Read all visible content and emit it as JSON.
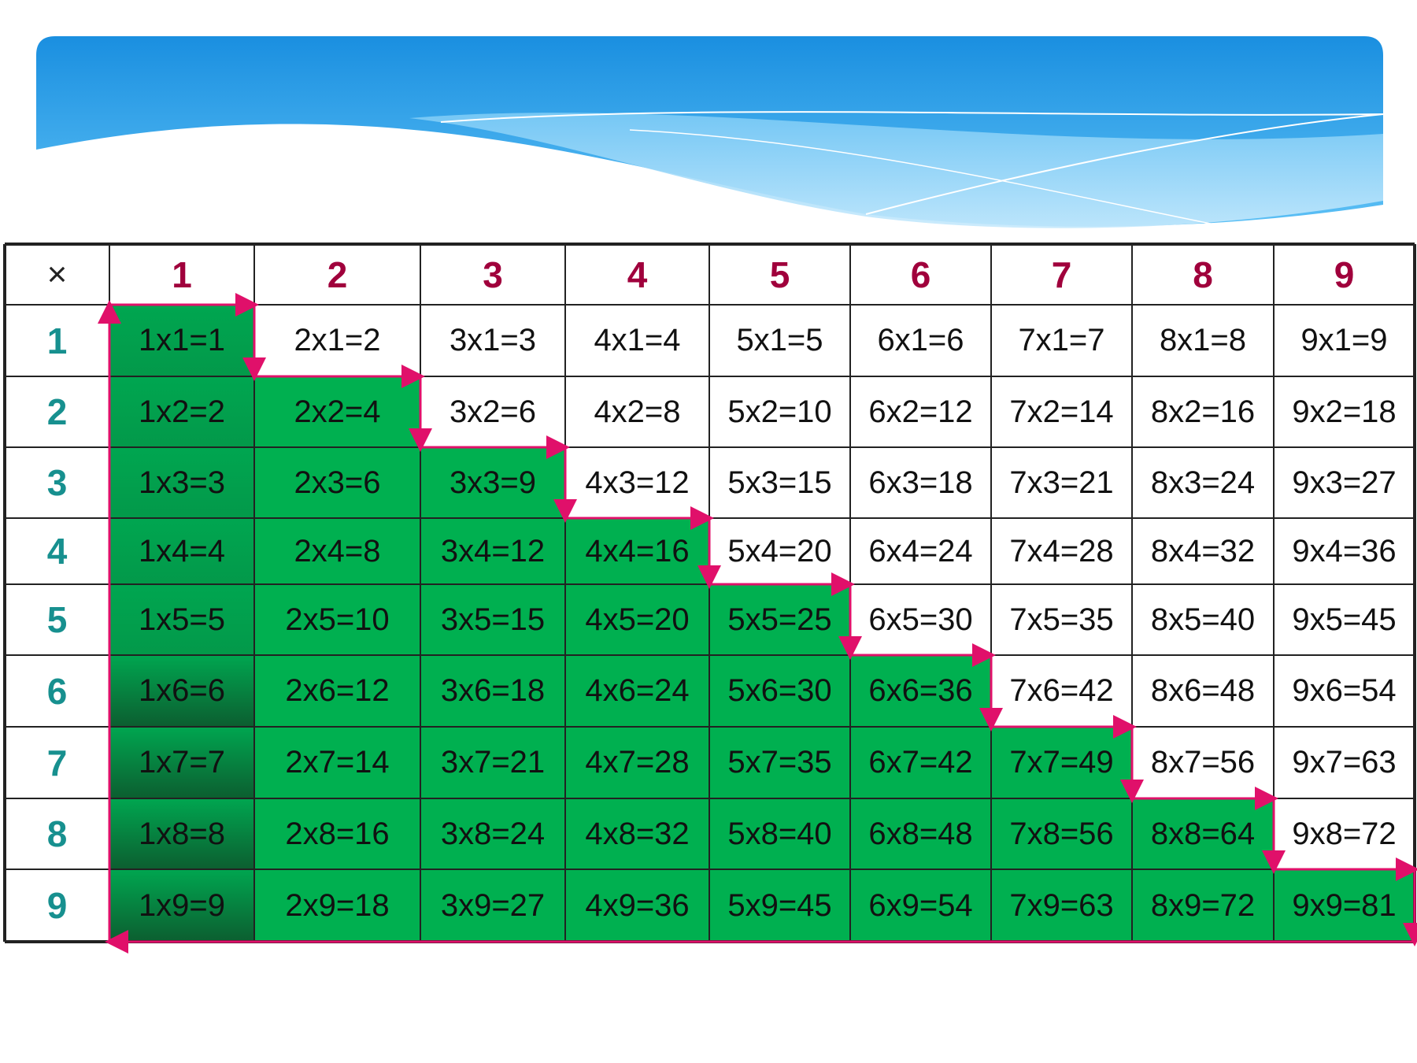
{
  "table": {
    "corner": "×",
    "columns": [
      "1",
      "2",
      "3",
      "4",
      "5",
      "6",
      "7",
      "8",
      "9"
    ],
    "rows": [
      {
        "label": "1",
        "cells": [
          "1x1=1",
          "2x1=2",
          "3x1=3",
          "4x1=4",
          "5x1=5",
          "6x1=6",
          "7x1=7",
          "8x1=8",
          "9x1=9"
        ]
      },
      {
        "label": "2",
        "cells": [
          "1x2=2",
          "2x2=4",
          "3x2=6",
          "4x2=8",
          "5x2=10",
          "6x2=12",
          "7x2=14",
          "8x2=16",
          "9x2=18"
        ]
      },
      {
        "label": "3",
        "cells": [
          "1x3=3",
          "2x3=6",
          "3x3=9",
          "4x3=12",
          "5x3=15",
          "6x3=18",
          "7x3=21",
          "8x3=24",
          "9x3=27"
        ]
      },
      {
        "label": "4",
        "cells": [
          "1x4=4",
          "2x4=8",
          "3x4=12",
          "4x4=16",
          "5x4=20",
          "6x4=24",
          "7x4=28",
          "8x4=32",
          "9x4=36"
        ]
      },
      {
        "label": "5",
        "cells": [
          "1x5=5",
          "2x5=10",
          "3x5=15",
          "4x5=20",
          "5x5=25",
          "6x5=30",
          "7x5=35",
          "8x5=40",
          "9x5=45"
        ]
      },
      {
        "label": "6",
        "cells": [
          "1x6=6",
          "2x6=12",
          "3x6=18",
          "4x6=24",
          "5x6=30",
          "6x6=36",
          "7x6=42",
          "8x6=48",
          "9x6=54"
        ]
      },
      {
        "label": "7",
        "cells": [
          "1x7=7",
          "2x7=14",
          "3x7=21",
          "4x7=28",
          "5x7=35",
          "6x7=42",
          "7x7=49",
          "8x7=56",
          "9x7=63"
        ]
      },
      {
        "label": "8",
        "cells": [
          "1x8=8",
          "2x8=16",
          "3x8=24",
          "4x8=32",
          "5x8=40",
          "6x8=48",
          "7x8=56",
          "8x8=64",
          "9x8=72"
        ]
      },
      {
        "label": "9",
        "cells": [
          "1x9=9",
          "2x9=18",
          "3x9=27",
          "4x9=36",
          "5x9=45",
          "6x9=54",
          "7x9=63",
          "8x9=72",
          "9x9=81"
        ]
      }
    ]
  }
}
